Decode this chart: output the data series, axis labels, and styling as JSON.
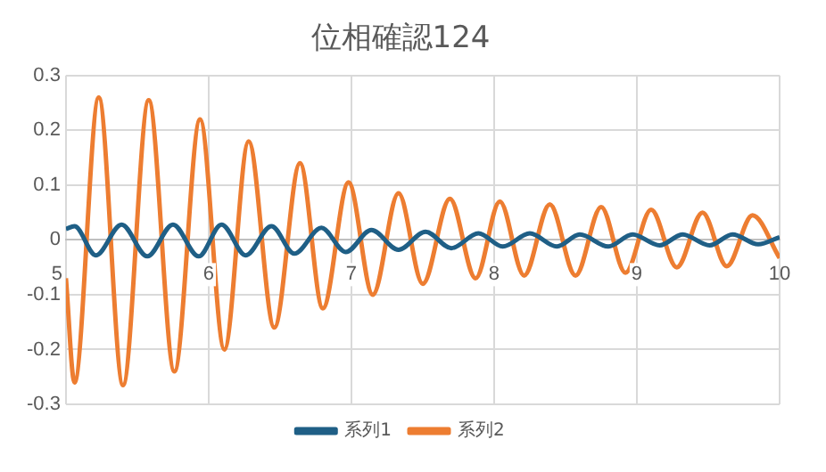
{
  "chart_data": {
    "type": "line",
    "title": "位相確認124",
    "series": [
      {
        "name": "系列1",
        "color": "#1f5f86",
        "x": [
          5.0,
          5.06,
          5.21,
          5.39,
          5.57,
          5.75,
          5.93,
          6.09,
          6.26,
          6.44,
          6.6,
          6.79,
          6.96,
          7.14,
          7.33,
          7.52,
          7.7,
          7.89,
          8.06,
          8.25,
          8.44,
          8.6,
          8.8,
          8.97,
          9.16,
          9.32,
          9.51,
          9.67,
          9.85,
          10.0
        ],
        "values": [
          0.02,
          0.025,
          -0.028,
          0.028,
          -0.03,
          0.028,
          -0.03,
          0.028,
          -0.028,
          0.025,
          -0.025,
          0.022,
          -0.022,
          0.018,
          -0.018,
          0.015,
          -0.015,
          0.012,
          -0.012,
          0.012,
          -0.012,
          0.01,
          -0.012,
          0.01,
          -0.01,
          0.01,
          -0.01,
          0.01,
          -0.008,
          0.005
        ]
      },
      {
        "name": "系列2",
        "color": "#ed7d31",
        "x": [
          5.0,
          5.06,
          5.23,
          5.4,
          5.58,
          5.76,
          5.94,
          6.11,
          6.28,
          6.46,
          6.64,
          6.8,
          6.98,
          7.15,
          7.33,
          7.5,
          7.69,
          7.87,
          8.04,
          8.21,
          8.39,
          8.57,
          8.75,
          8.92,
          9.1,
          9.28,
          9.46,
          9.63,
          9.81,
          10.0
        ],
        "values": [
          -0.07,
          -0.26,
          0.26,
          -0.265,
          0.255,
          -0.24,
          0.22,
          -0.2,
          0.18,
          -0.16,
          0.14,
          -0.125,
          0.105,
          -0.1,
          0.085,
          -0.08,
          0.075,
          -0.07,
          0.07,
          -0.065,
          0.065,
          -0.065,
          0.06,
          -0.06,
          0.055,
          -0.05,
          0.05,
          -0.048,
          0.045,
          -0.033
        ]
      }
    ],
    "xlim": [
      5,
      10
    ],
    "xticks": [
      5,
      6,
      7,
      8,
      9,
      10
    ],
    "ylim": [
      -0.3,
      0.3
    ],
    "yticks": [
      -0.3,
      -0.2,
      -0.1,
      0,
      0.1,
      0.2,
      0.3
    ],
    "grid": true,
    "legend": "bottom",
    "marker": "none",
    "line_style": "solid"
  }
}
